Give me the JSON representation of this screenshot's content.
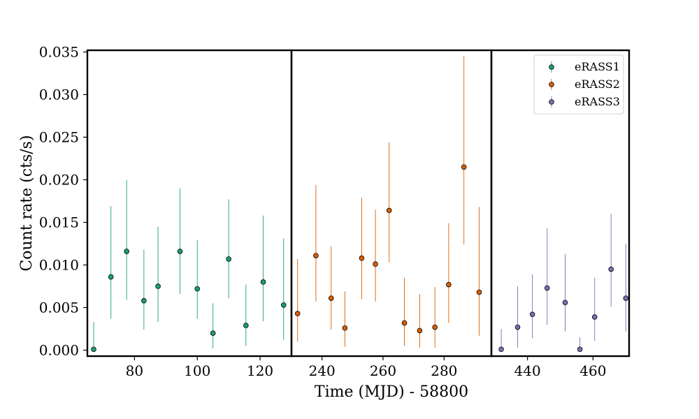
{
  "chart_data": {
    "type": "scatter",
    "ylabel": "Count rate (cts/s)",
    "xlabel": "Time (MJD) - 58800",
    "ylim": [
      -0.0007,
      0.0352
    ],
    "yticks": [
      "0.000",
      "0.005",
      "0.010",
      "0.015",
      "0.020",
      "0.025",
      "0.030",
      "0.035"
    ],
    "panels": [
      {
        "xlim": [
          65,
          130
        ],
        "xticks": [
          "80",
          "100",
          "120"
        ],
        "series": [
          {
            "name": "eRASS1",
            "color": "#1b9e77",
            "points": [
              {
                "x": 67,
                "y": 0.0001,
                "lo": 0.0,
                "hi": 0.0033
              },
              {
                "x": 72.5,
                "y": 0.0086,
                "lo": 0.0037,
                "hi": 0.0169
              },
              {
                "x": 77.5,
                "y": 0.0116,
                "lo": 0.0059,
                "hi": 0.02
              },
              {
                "x": 83,
                "y": 0.0058,
                "lo": 0.0024,
                "hi": 0.0118
              },
              {
                "x": 87.5,
                "y": 0.0075,
                "lo": 0.0033,
                "hi": 0.0145
              },
              {
                "x": 94.5,
                "y": 0.0116,
                "lo": 0.0066,
                "hi": 0.019
              },
              {
                "x": 100,
                "y": 0.0072,
                "lo": 0.0037,
                "hi": 0.0129
              },
              {
                "x": 105,
                "y": 0.002,
                "lo": 0.0002,
                "hi": 0.0055
              },
              {
                "x": 110,
                "y": 0.0107,
                "lo": 0.0061,
                "hi": 0.0177
              },
              {
                "x": 115.5,
                "y": 0.0029,
                "lo": 0.0005,
                "hi": 0.0077
              },
              {
                "x": 121,
                "y": 0.008,
                "lo": 0.0034,
                "hi": 0.0158
              },
              {
                "x": 127.5,
                "y": 0.0053,
                "lo": 0.0012,
                "hi": 0.0131
              }
            ]
          }
        ]
      },
      {
        "xlim": [
          230,
          295.5
        ],
        "xticks": [
          "240",
          "260",
          "280"
        ],
        "series": [
          {
            "name": "eRASS2",
            "color": "#d95f02",
            "points": [
              {
                "x": 232,
                "y": 0.0043,
                "lo": 0.001,
                "hi": 0.0107
              },
              {
                "x": 238,
                "y": 0.0111,
                "lo": 0.0057,
                "hi": 0.0194
              },
              {
                "x": 243,
                "y": 0.0061,
                "lo": 0.0024,
                "hi": 0.0122
              },
              {
                "x": 247.5,
                "y": 0.0026,
                "lo": 0.0004,
                "hi": 0.0069
              },
              {
                "x": 253,
                "y": 0.0108,
                "lo": 0.006,
                "hi": 0.0179
              },
              {
                "x": 257.5,
                "y": 0.0101,
                "lo": 0.0057,
                "hi": 0.0165
              },
              {
                "x": 262,
                "y": 0.0164,
                "lo": 0.0103,
                "hi": 0.0244
              },
              {
                "x": 267,
                "y": 0.0032,
                "lo": 0.0005,
                "hi": 0.0085
              },
              {
                "x": 272,
                "y": 0.0023,
                "lo": 0.0003,
                "hi": 0.0066
              },
              {
                "x": 277,
                "y": 0.0027,
                "lo": 0.0003,
                "hi": 0.0074
              },
              {
                "x": 281.5,
                "y": 0.0077,
                "lo": 0.0032,
                "hi": 0.0149
              },
              {
                "x": 286.5,
                "y": 0.0215,
                "lo": 0.0124,
                "hi": 0.0345
              },
              {
                "x": 291.5,
                "y": 0.0068,
                "lo": 0.0017,
                "hi": 0.0168
              }
            ]
          }
        ]
      },
      {
        "xlim": [
          429,
          471
        ],
        "xticks": [
          "440",
          "460"
        ],
        "series": [
          {
            "name": "eRASS3",
            "color": "#7570b3",
            "points": [
              {
                "x": 432,
                "y": 0.0001,
                "lo": 0.0,
                "hi": 0.0025
              },
              {
                "x": 437,
                "y": 0.0027,
                "lo": 0.0003,
                "hi": 0.0075
              },
              {
                "x": 441.5,
                "y": 0.0042,
                "lo": 0.0014,
                "hi": 0.0089
              },
              {
                "x": 446,
                "y": 0.0073,
                "lo": 0.003,
                "hi": 0.0143
              },
              {
                "x": 451.5,
                "y": 0.0056,
                "lo": 0.0022,
                "hi": 0.0113
              },
              {
                "x": 456,
                "y": 0.0001,
                "lo": 0.0,
                "hi": 0.0015
              },
              {
                "x": 460.5,
                "y": 0.0039,
                "lo": 0.0011,
                "hi": 0.0085
              },
              {
                "x": 465.5,
                "y": 0.0095,
                "lo": 0.0051,
                "hi": 0.016
              },
              {
                "x": 470,
                "y": 0.0061,
                "lo": 0.0022,
                "hi": 0.0125
              }
            ]
          }
        ]
      }
    ],
    "legend": {
      "placement": "top-right",
      "entries": [
        "eRASS1",
        "eRASS2",
        "eRASS3"
      ]
    }
  }
}
